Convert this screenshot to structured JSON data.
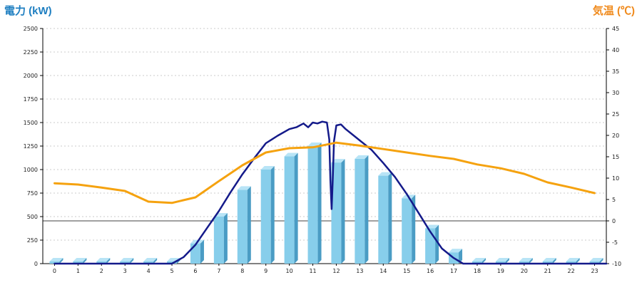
{
  "colors": {
    "left_axis_title": "#1f7fc1",
    "right_axis_title": "#f08a1c",
    "bars_front": "#87ceeb",
    "bars_side": "#4a9cc4",
    "bars_top": "#b8e4f6",
    "power_line": "#141a8a",
    "temp_line": "#f5a20f",
    "grid": "#bbbbbb",
    "zero_line": "#000000"
  },
  "chart_data": {
    "type": "bar",
    "ylabel": "電力 (kW)",
    "y2label": "気温 (℃)",
    "ylim": [
      0,
      2500
    ],
    "y2lim": [
      -10,
      45
    ],
    "y_ticks": [
      0,
      250,
      500,
      750,
      1000,
      1250,
      1500,
      1750,
      2000,
      2250,
      2500
    ],
    "y2_ticks": [
      -10,
      -5,
      0,
      5,
      10,
      15,
      20,
      25,
      30,
      35,
      40,
      45
    ],
    "categories": [
      "0",
      "1",
      "2",
      "3",
      "4",
      "5",
      "6",
      "7",
      "8",
      "9",
      "10",
      "11",
      "12",
      "13",
      "14",
      "15",
      "16",
      "17",
      "18",
      "19",
      "20",
      "21",
      "22",
      "23"
    ],
    "grid": true,
    "series": [
      {
        "type": "bar",
        "axis": "left",
        "values": [
          0,
          0,
          0,
          0,
          0,
          0,
          215,
          500,
          785,
          1000,
          1140,
          1250,
          1075,
          1115,
          935,
          695,
          375,
          120,
          0,
          0,
          0,
          0,
          0,
          0
        ]
      },
      {
        "type": "line",
        "axis": "left",
        "x": [
          0,
          4.5,
          5.0,
          5.5,
          6.0,
          6.5,
          7.0,
          7.5,
          8.0,
          8.5,
          9.0,
          9.5,
          10.0,
          10.3,
          10.6,
          10.8,
          11.0,
          11.2,
          11.4,
          11.6,
          11.7,
          11.75,
          11.8,
          11.85,
          11.9,
          12.0,
          12.2,
          12.4,
          12.6,
          13.0,
          13.5,
          14.0,
          14.5,
          15.0,
          15.5,
          16.0,
          16.5,
          17.0,
          17.4,
          18.0,
          23.5
        ],
        "values": [
          0,
          0,
          0,
          70,
          200,
          380,
          560,
          760,
          950,
          1120,
          1280,
          1360,
          1430,
          1450,
          1490,
          1450,
          1500,
          1490,
          1510,
          1500,
          1320,
          880,
          580,
          900,
          1300,
          1470,
          1480,
          1430,
          1390,
          1310,
          1210,
          1070,
          920,
          740,
          540,
          340,
          160,
          60,
          0,
          0,
          0
        ]
      },
      {
        "type": "line",
        "axis": "right",
        "x": [
          0,
          1,
          2,
          3,
          4,
          5,
          6,
          7,
          8,
          9,
          10,
          11,
          12,
          13,
          14,
          15,
          16,
          17,
          18,
          19,
          20,
          21,
          22,
          23
        ],
        "values": [
          8.8,
          8.5,
          7.8,
          7,
          4.5,
          4.2,
          5.5,
          9.3,
          13,
          16,
          17,
          17.2,
          18.3,
          17.6,
          16.8,
          16,
          15.2,
          14.5,
          13.2,
          12.3,
          11,
          9,
          7.8,
          6.5
        ]
      }
    ]
  }
}
